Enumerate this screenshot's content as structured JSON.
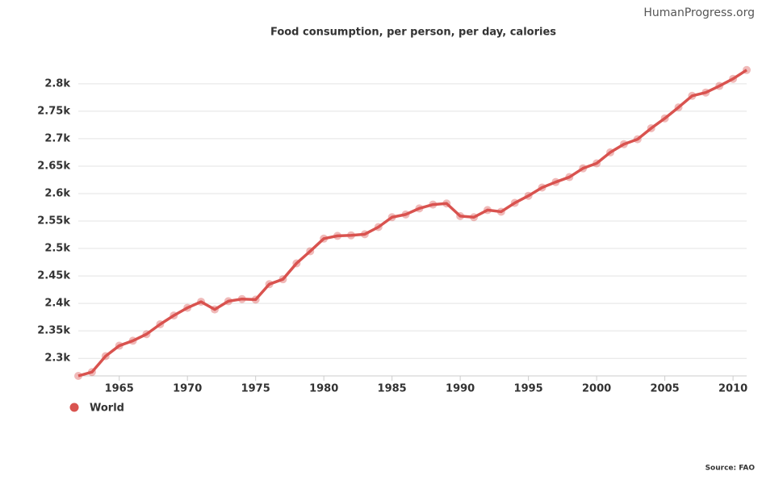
{
  "chart_data": {
    "type": "line",
    "watermark": "HumanProgress.org",
    "title": "Food consumption, per person, per day, calories",
    "source": "Source: FAO",
    "x": [
      1962,
      1963,
      1964,
      1965,
      1966,
      1967,
      1968,
      1969,
      1970,
      1971,
      1972,
      1973,
      1974,
      1975,
      1976,
      1977,
      1978,
      1979,
      1980,
      1981,
      1982,
      1983,
      1984,
      1985,
      1986,
      1987,
      1988,
      1989,
      1990,
      1991,
      1992,
      1993,
      1994,
      1995,
      1996,
      1997,
      1998,
      1999,
      2000,
      2001,
      2002,
      2003,
      2004,
      2005,
      2006,
      2007,
      2008,
      2009,
      2010,
      2011
    ],
    "series": [
      {
        "name": "World",
        "color": "#d9534f",
        "values": [
          2268,
          2275,
          2304,
          2323,
          2332,
          2344,
          2362,
          2378,
          2392,
          2403,
          2389,
          2404,
          2408,
          2407,
          2435,
          2444,
          2473,
          2495,
          2518,
          2523,
          2524,
          2526,
          2539,
          2557,
          2562,
          2573,
          2580,
          2582,
          2559,
          2557,
          2570,
          2567,
          2583,
          2596,
          2611,
          2621,
          2630,
          2646,
          2655,
          2675,
          2690,
          2699,
          2719,
          2737,
          2757,
          2778,
          2784,
          2796,
          2809,
          2825
        ]
      }
    ],
    "xlim": [
      1962,
      2011
    ],
    "xticks": [
      1965,
      1970,
      1975,
      1980,
      1985,
      1990,
      1995,
      2000,
      2005,
      2010
    ],
    "ylim": [
      2268,
      2835
    ],
    "yticks": [
      {
        "value": 2300,
        "label": "2.3k"
      },
      {
        "value": 2350,
        "label": "2.35k"
      },
      {
        "value": 2400,
        "label": "2.4k"
      },
      {
        "value": 2450,
        "label": "2.45k"
      },
      {
        "value": 2500,
        "label": "2.5k"
      },
      {
        "value": 2550,
        "label": "2.55k"
      },
      {
        "value": 2600,
        "label": "2.6k"
      },
      {
        "value": 2650,
        "label": "2.65k"
      },
      {
        "value": 2700,
        "label": "2.7k"
      },
      {
        "value": 2750,
        "label": "2.75k"
      },
      {
        "value": 2800,
        "label": "2.8k"
      }
    ],
    "grid": true,
    "legend": "bottom-left"
  }
}
